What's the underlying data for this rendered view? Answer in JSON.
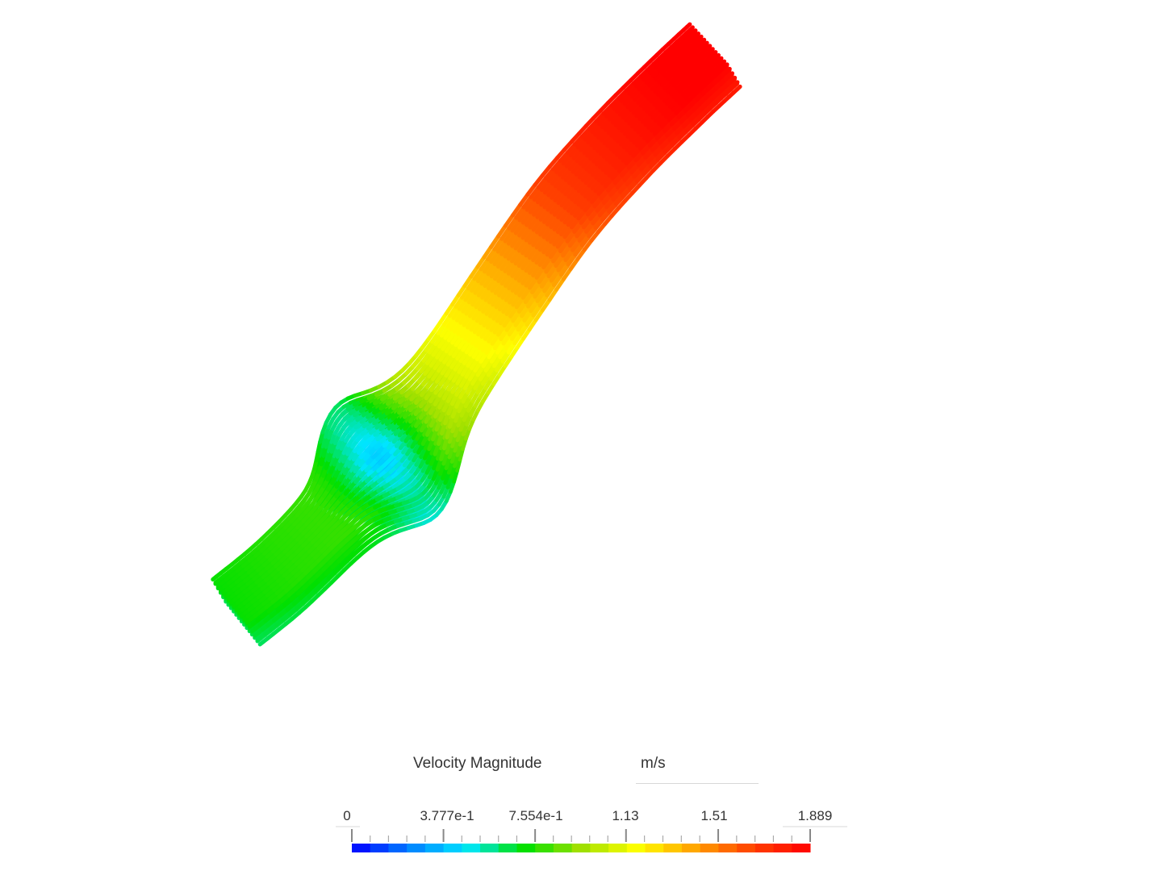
{
  "legend": {
    "title": "Velocity Magnitude",
    "unit": "m/s",
    "ticks": [
      {
        "value": 0,
        "label": "0"
      },
      {
        "value": 0.3777,
        "label": "3.777e-1"
      },
      {
        "value": 0.7554,
        "label": "7.554e-1"
      },
      {
        "value": 1.13,
        "label": "1.13"
      },
      {
        "value": 1.51,
        "label": "1.51"
      },
      {
        "value": 1.889,
        "label": "1.889"
      }
    ],
    "min": 0,
    "max": 1.889,
    "minor_ticks_per_major": 4,
    "colormap": [
      "#0000ff",
      "#0080ff",
      "#00e6ff",
      "#00e000",
      "#a0e000",
      "#ffff00",
      "#ffa000",
      "#ff4000",
      "#ff0000"
    ],
    "color_steps": 25
  },
  "view": {
    "visualization": "streamlines",
    "field": "Velocity Magnitude"
  }
}
